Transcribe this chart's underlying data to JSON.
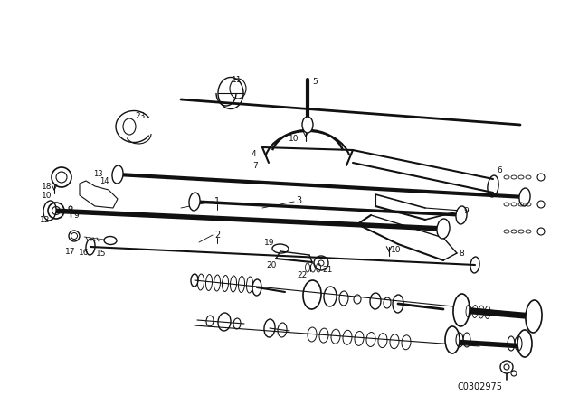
{
  "background_color": "#ffffff",
  "diagram_color": "#111111",
  "watermark": "C0302975",
  "figsize": [
    6.4,
    4.48
  ],
  "dpi": 100
}
